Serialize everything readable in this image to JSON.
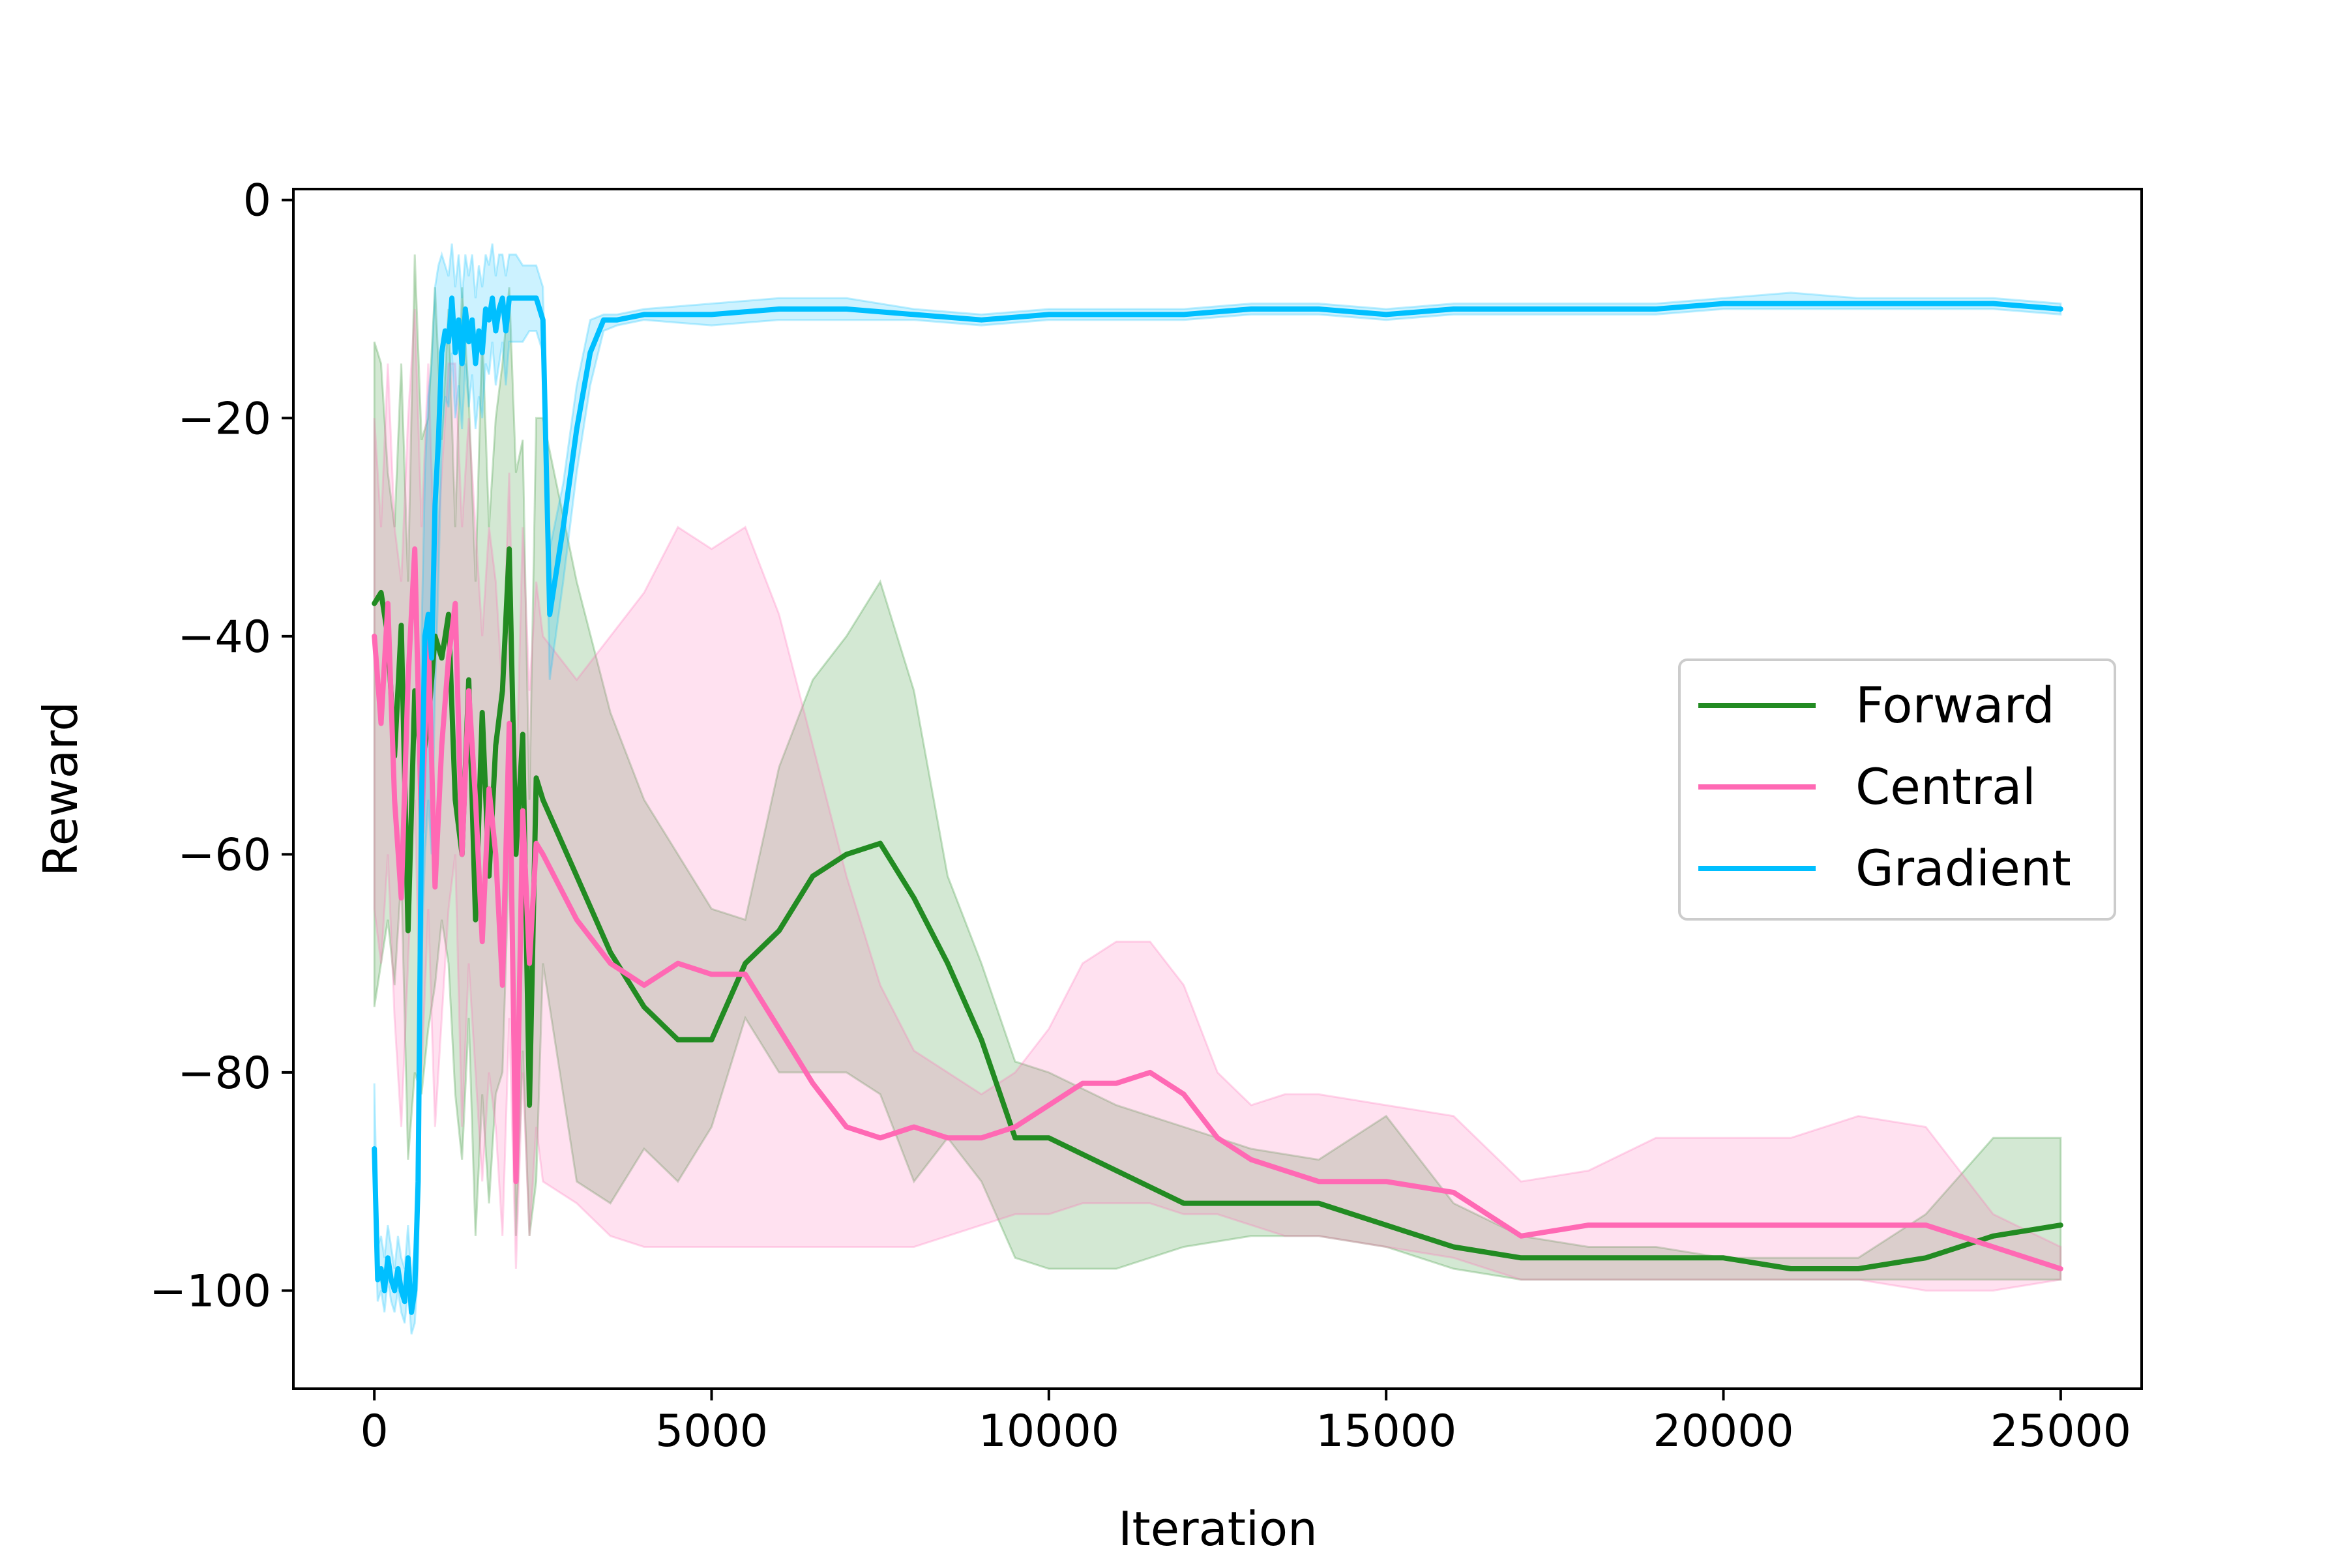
{
  "chart_data": {
    "type": "line",
    "title": "",
    "xlabel": "Iteration",
    "ylabel": "Reward",
    "xlim": [
      -1200,
      26200
    ],
    "ylim": [
      -109,
      1
    ],
    "xticks": [
      0,
      5000,
      10000,
      15000,
      20000,
      25000
    ],
    "xtick_labels": [
      "0",
      "5000",
      "10000",
      "15000",
      "20000",
      "25000"
    ],
    "yticks": [
      0,
      -20,
      -40,
      -60,
      -80,
      -100
    ],
    "ytick_labels": [
      "0",
      "−20",
      "−40",
      "−60",
      "−80",
      "−100"
    ],
    "grid": false,
    "legend_position": "center-right",
    "legend": [
      "Forward",
      "Central",
      "Gradient"
    ],
    "series": [
      {
        "name": "Forward",
        "color": "#228b22",
        "x": [
          0,
          100,
          200,
          300,
          400,
          500,
          600,
          700,
          800,
          900,
          1000,
          1100,
          1200,
          1300,
          1400,
          1500,
          1600,
          1700,
          1800,
          1900,
          2000,
          2100,
          2200,
          2300,
          2400,
          2500,
          3000,
          3500,
          4000,
          4500,
          5000,
          5500,
          6000,
          6500,
          7000,
          7500,
          8000,
          8500,
          9000,
          9500,
          10000,
          11000,
          12000,
          13000,
          14000,
          15000,
          16000,
          17000,
          18000,
          19000,
          20000,
          21000,
          22000,
          23000,
          24000,
          25000
        ],
        "y": [
          -37,
          -36,
          -40,
          -51,
          -39,
          -67,
          -45,
          -52,
          -48,
          -40,
          -42,
          -38,
          -55,
          -60,
          -44,
          -66,
          -47,
          -62,
          -50,
          -45,
          -32,
          -60,
          -49,
          -83,
          -53,
          -55,
          -62,
          -69,
          -74,
          -77,
          -77,
          -70,
          -67,
          -62,
          -60,
          -59,
          -64,
          -70,
          -77,
          -86,
          -86,
          -89,
          -92,
          -92,
          -92,
          -94,
          -96,
          -97,
          -97,
          -97,
          -97,
          -98,
          -98,
          -97,
          -95,
          -94
        ],
        "upper": [
          -13,
          -15,
          -25,
          -30,
          -15,
          -35,
          -5,
          -22,
          -20,
          -8,
          -22,
          -10,
          -30,
          -8,
          -18,
          -35,
          -12,
          -30,
          -20,
          -15,
          -8,
          -25,
          -22,
          -55,
          -20,
          -20,
          -35,
          -47,
          -55,
          -60,
          -65,
          -66,
          -52,
          -44,
          -40,
          -35,
          -45,
          -62,
          -70,
          -79,
          -80,
          -83,
          -85,
          -87,
          -88,
          -84,
          -92,
          -95,
          -96,
          -96,
          -97,
          -97,
          -97,
          -93,
          -86,
          -86
        ],
        "lower": [
          -74,
          -70,
          -66,
          -72,
          -62,
          -88,
          -80,
          -82,
          -76,
          -72,
          -66,
          -70,
          -82,
          -88,
          -75,
          -95,
          -82,
          -92,
          -82,
          -80,
          -60,
          -95,
          -78,
          -95,
          -90,
          -70,
          -90,
          -92,
          -87,
          -90,
          -85,
          -75,
          -80,
          -80,
          -80,
          -82,
          -90,
          -86,
          -90,
          -97,
          -98,
          -98,
          -96,
          -95,
          -95,
          -96,
          -98,
          -99,
          -99,
          -99,
          -99,
          -99,
          -99,
          -99,
          -99,
          -99
        ]
      },
      {
        "name": "Central",
        "color": "#ff69b4",
        "x": [
          0,
          100,
          200,
          300,
          400,
          500,
          600,
          700,
          800,
          900,
          1000,
          1100,
          1200,
          1300,
          1400,
          1500,
          1600,
          1700,
          1800,
          1900,
          2000,
          2100,
          2200,
          2300,
          2400,
          2500,
          3000,
          3500,
          4000,
          4500,
          5000,
          5500,
          6000,
          6500,
          7000,
          7500,
          8000,
          8500,
          9000,
          9500,
          10000,
          10500,
          11000,
          11500,
          12000,
          12500,
          13000,
          13500,
          14000,
          15000,
          16000,
          17000,
          18000,
          19000,
          20000,
          21000,
          22000,
          23000,
          24000,
          25000
        ],
        "y": [
          -40,
          -48,
          -37,
          -55,
          -64,
          -44,
          -32,
          -58,
          -40,
          -63,
          -50,
          -42,
          -37,
          -60,
          -45,
          -55,
          -68,
          -54,
          -60,
          -72,
          -48,
          -90,
          -56,
          -70,
          -59,
          -60,
          -66,
          -70,
          -72,
          -70,
          -71,
          -71,
          -76,
          -81,
          -85,
          -86,
          -85,
          -86,
          -86,
          -85,
          -83,
          -81,
          -81,
          -80,
          -82,
          -86,
          -88,
          -89,
          -90,
          -90,
          -91,
          -95,
          -94,
          -94,
          -94,
          -94,
          -94,
          -94,
          -96,
          -98
        ],
        "upper": [
          -20,
          -30,
          -15,
          -30,
          -35,
          -20,
          -10,
          -30,
          -15,
          -35,
          -25,
          -15,
          -15,
          -30,
          -20,
          -30,
          -40,
          -30,
          -35,
          -45,
          -25,
          -55,
          -30,
          -45,
          -35,
          -40,
          -44,
          -40,
          -36,
          -30,
          -32,
          -30,
          -38,
          -50,
          -62,
          -72,
          -78,
          -80,
          -82,
          -80,
          -76,
          -70,
          -68,
          -68,
          -72,
          -80,
          -83,
          -82,
          -82,
          -83,
          -84,
          -90,
          -89,
          -86,
          -86,
          -86,
          -84,
          -85,
          -93,
          -96
        ],
        "lower": [
          -65,
          -70,
          -60,
          -75,
          -85,
          -70,
          -55,
          -80,
          -65,
          -85,
          -75,
          -65,
          -60,
          -85,
          -70,
          -80,
          -90,
          -80,
          -85,
          -95,
          -75,
          -98,
          -80,
          -95,
          -85,
          -90,
          -92,
          -95,
          -96,
          -96,
          -96,
          -96,
          -96,
          -96,
          -96,
          -96,
          -96,
          -95,
          -94,
          -93,
          -93,
          -92,
          -92,
          -92,
          -93,
          -93,
          -94,
          -95,
          -95,
          -96,
          -97,
          -99,
          -99,
          -99,
          -99,
          -99,
          -99,
          -100,
          -100,
          -99
        ]
      },
      {
        "name": "Gradient",
        "color": "#00bfff",
        "x": [
          0,
          50,
          100,
          150,
          200,
          250,
          300,
          350,
          400,
          450,
          500,
          550,
          600,
          650,
          700,
          750,
          800,
          850,
          900,
          950,
          1000,
          1050,
          1100,
          1150,
          1200,
          1250,
          1300,
          1350,
          1400,
          1450,
          1500,
          1550,
          1600,
          1650,
          1700,
          1750,
          1800,
          1850,
          1900,
          1950,
          2000,
          2100,
          2200,
          2300,
          2400,
          2500,
          2600,
          2800,
          3000,
          3200,
          3400,
          3600,
          4000,
          5000,
          6000,
          7000,
          8000,
          9000,
          10000,
          11000,
          12000,
          13000,
          14000,
          15000,
          16000,
          17000,
          18000,
          19000,
          20000,
          21000,
          22000,
          23000,
          24000,
          25000
        ],
        "y": [
          -87,
          -99,
          -98,
          -100,
          -97,
          -99,
          -100,
          -98,
          -100,
          -101,
          -97,
          -102,
          -100,
          -90,
          -55,
          -40,
          -38,
          -42,
          -28,
          -22,
          -14,
          -12,
          -13,
          -9,
          -14,
          -11,
          -15,
          -10,
          -13,
          -11,
          -15,
          -12,
          -14,
          -10,
          -11,
          -9,
          -12,
          -10,
          -9,
          -12,
          -9,
          -9,
          -9,
          -9,
          -9,
          -11,
          -38,
          -30,
          -21,
          -14,
          -11,
          -11,
          -10.5,
          -10.5,
          -10,
          -10,
          -10.5,
          -11,
          -10.5,
          -10.5,
          -10.5,
          -10,
          -10,
          -10.5,
          -10,
          -10,
          -10,
          -10,
          -9.5,
          -9.5,
          -9.5,
          -9.5,
          -9.5,
          -10
        ],
        "upper": [
          -81,
          -96,
          -95,
          -97,
          -94,
          -96,
          -98,
          -95,
          -97,
          -98,
          -94,
          -99,
          -96,
          -80,
          -40,
          -25,
          -18,
          -15,
          -8,
          -6,
          -5,
          -6,
          -7,
          -4,
          -8,
          -5,
          -9,
          -5,
          -7,
          -5,
          -9,
          -6,
          -8,
          -5,
          -6,
          -4,
          -7,
          -5,
          -5,
          -7,
          -5,
          -5,
          -6,
          -6,
          -6,
          -8,
          -32,
          -26,
          -17,
          -11,
          -10.5,
          -10.5,
          -10,
          -9.5,
          -9,
          -9,
          -10,
          -10.5,
          -10,
          -10,
          -10,
          -9.5,
          -9.5,
          -10,
          -9.5,
          -9.5,
          -9.5,
          -9.5,
          -9,
          -8.5,
          -9,
          -9,
          -9,
          -9.5
        ],
        "lower": [
          -92,
          -101,
          -100,
          -102,
          -99,
          -101,
          -102,
          -100,
          -102,
          -103,
          -100,
          -104,
          -103,
          -98,
          -70,
          -60,
          -55,
          -60,
          -45,
          -35,
          -22,
          -18,
          -19,
          -14,
          -20,
          -17,
          -21,
          -15,
          -19,
          -16,
          -21,
          -18,
          -20,
          -15,
          -16,
          -13,
          -17,
          -15,
          -13,
          -17,
          -13,
          -13,
          -13,
          -12,
          -12,
          -14,
          -44,
          -35,
          -25,
          -17,
          -12,
          -11.5,
          -11,
          -11.5,
          -11,
          -11,
          -11,
          -11.5,
          -11,
          -11,
          -11,
          -10.5,
          -10.5,
          -11,
          -10.5,
          -10.5,
          -10.5,
          -10.5,
          -10,
          -10,
          -10,
          -10,
          -10,
          -10.5
        ]
      }
    ]
  }
}
